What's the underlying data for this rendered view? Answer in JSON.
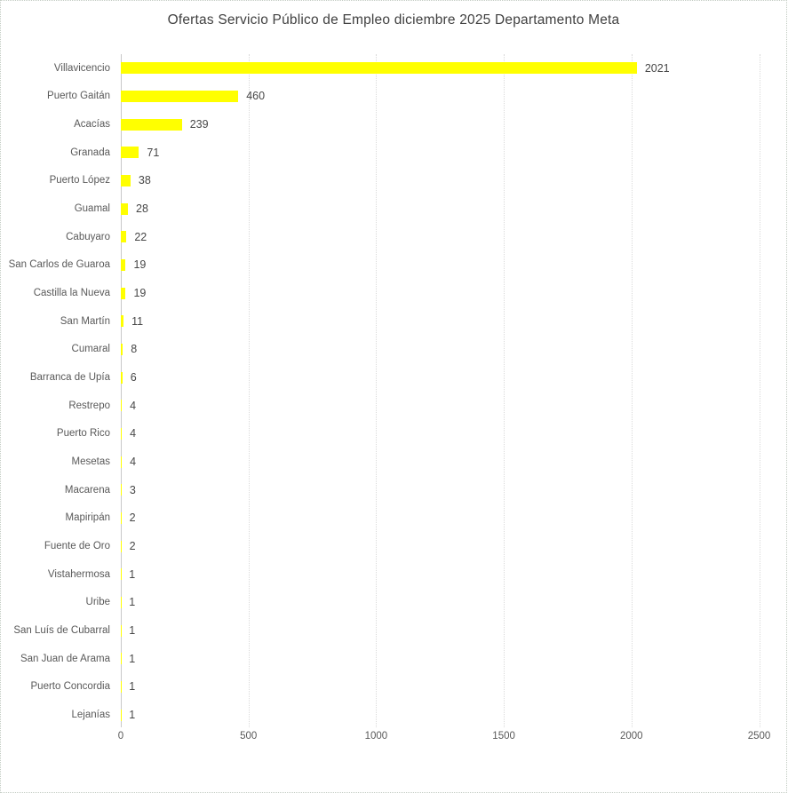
{
  "chart_data": {
    "type": "bar",
    "orientation": "horizontal",
    "title": "Ofertas Servicio Público de Empleo diciembre 2025 Departamento Meta",
    "categories": [
      "Villavicencio",
      "Puerto Gaitán",
      "Acacías",
      "Granada",
      "Puerto López",
      "Guamal",
      "Cabuyaro",
      "San Carlos de Guaroa",
      "Castilla la Nueva",
      "San Martín",
      "Cumaral",
      "Barranca de Upía",
      "Restrepo",
      "Puerto Rico",
      "Mesetas",
      "Macarena",
      "Mapiripán",
      "Fuente de Oro",
      "Vistahermosa",
      "Uribe",
      "San Luís de Cubarral",
      "San Juan de Arama",
      "Puerto Concordia",
      "Lejanías"
    ],
    "values": [
      2021,
      460,
      239,
      71,
      38,
      28,
      22,
      19,
      19,
      11,
      8,
      6,
      4,
      4,
      4,
      3,
      2,
      2,
      1,
      1,
      1,
      1,
      1,
      1
    ],
    "xlabel": "",
    "ylabel": "",
    "xlim": [
      0,
      2500
    ],
    "x_ticks": [
      0,
      500,
      1000,
      1500,
      2000,
      2500
    ],
    "bar_color": "#ffff00",
    "grid": true,
    "data_labels": true,
    "legend": "none"
  }
}
